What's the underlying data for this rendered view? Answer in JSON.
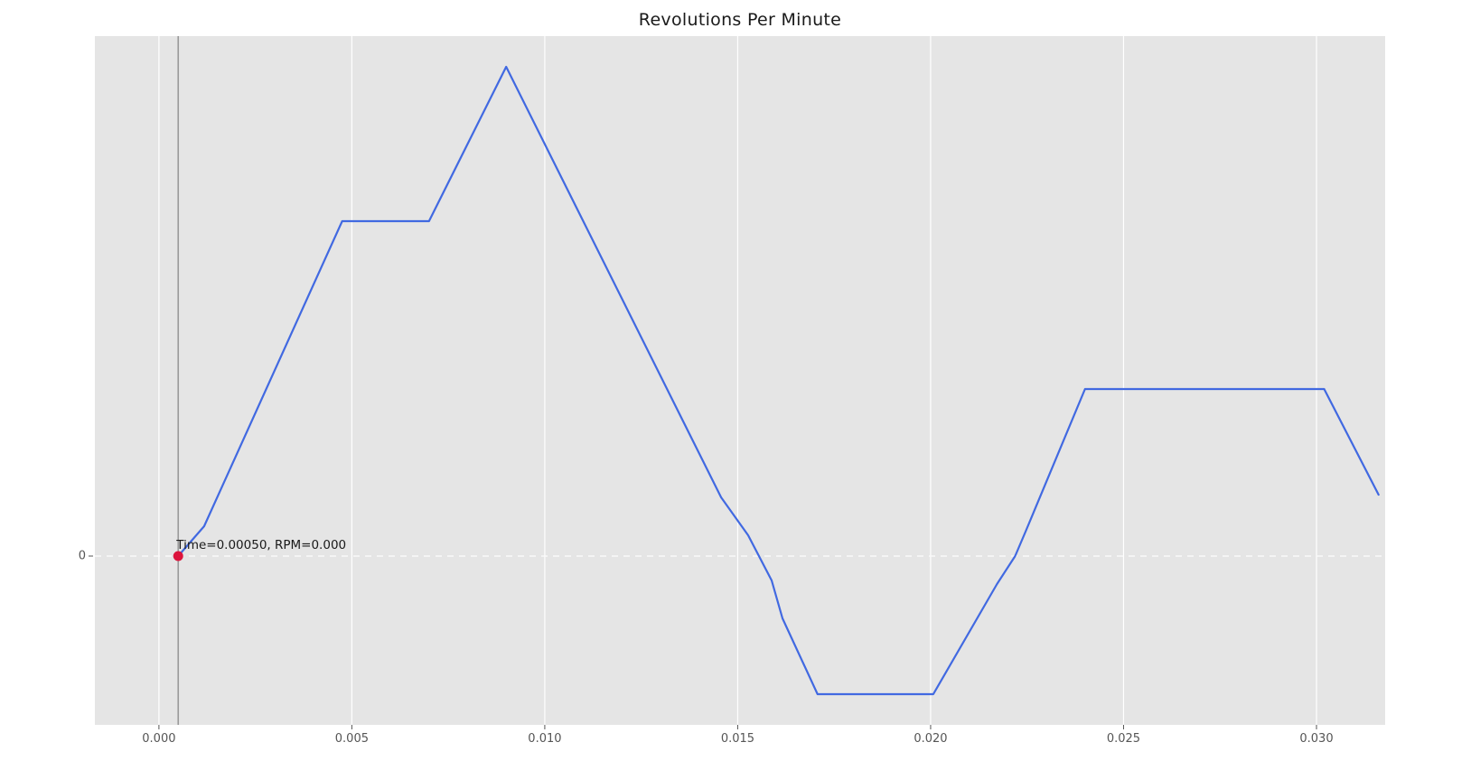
{
  "title": "Revolutions Per Minute",
  "annotation": {
    "text": "Time=0.00050, RPM=0.000"
  },
  "axes": {
    "x_ticks": [
      "0.000",
      "0.005",
      "0.010",
      "0.015",
      "0.020",
      "0.025",
      "0.030"
    ],
    "x_tick_values": [
      0.0,
      0.005,
      0.01,
      0.015,
      0.02,
      0.025,
      0.03
    ],
    "y_ticks": [
      "0"
    ],
    "y_tick_values": [
      0
    ]
  },
  "colors": {
    "figure_bg": "#ffffff",
    "plot_bg": "#e5e5e5",
    "grid": "#ffffff",
    "line": "#4169e1",
    "marker": "#dc143c",
    "zero_dash_line": "#fafafa",
    "cursor_line": "#9a9a9a",
    "tick_color": "#555555",
    "title_color": "#1a1a1a"
  },
  "chart_data": {
    "type": "line",
    "title": "Revolutions Per Minute",
    "xlabel": "",
    "ylabel": "",
    "legend": "none",
    "grid": "vertical white gridlines on gray background (ggplot style)",
    "xlim": [
      -0.00166,
      0.03178
    ],
    "ylim": [
      -187,
      576
    ],
    "x": [
      0.0005,
      0.00117,
      0.00475,
      0.007,
      0.009,
      0.01457,
      0.01527,
      0.01588,
      0.01616,
      0.01707,
      0.02007,
      0.02172,
      0.02219,
      0.02247,
      0.024,
      0.0302,
      0.03161
    ],
    "series": [
      {
        "name": "RPM",
        "values": [
          0,
          33,
          371,
          371,
          542,
          65,
          23,
          -27,
          -69,
          -153,
          -153,
          -31,
          0,
          28,
          185,
          185,
          68
        ]
      }
    ],
    "reference_lines": {
      "horizontal_dashed_y": 0,
      "vertical_cursor_x": 0.0005
    },
    "marker_point": {
      "x": 0.0005,
      "y": 0,
      "label": "Time=0.00050, RPM=0.000"
    }
  }
}
